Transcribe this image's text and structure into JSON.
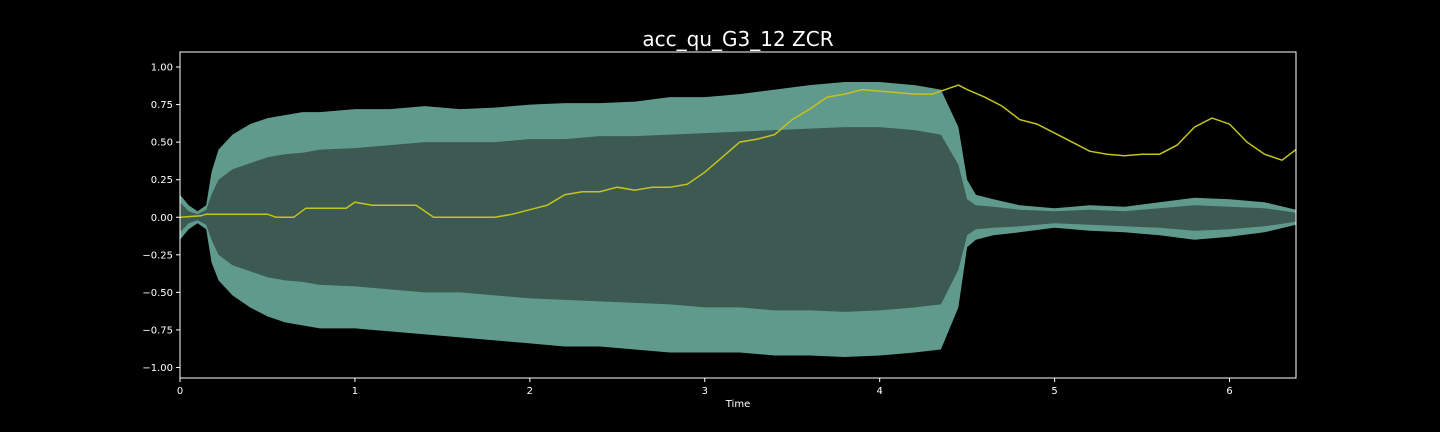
{
  "chart_data": {
    "type": "line",
    "title": "acc_qu_G3_12 ZCR",
    "xlabel": "Time",
    "ylabel": "",
    "xlim": [
      0,
      6.38
    ],
    "ylim": [
      -1.07,
      1.1
    ],
    "xticks": [
      0,
      1,
      2,
      3,
      4,
      5,
      6
    ],
    "xtick_labels": [
      "0",
      "1",
      "2",
      "3",
      "4",
      "5",
      "6"
    ],
    "yticks": [
      1.0,
      0.75,
      0.5,
      0.25,
      0.0,
      -0.25,
      -0.5,
      -0.75,
      -1.0
    ],
    "ytick_labels": [
      "1.00",
      "0.75",
      "0.50",
      "0.25",
      "0.00",
      "−0.25",
      "−0.50",
      "−0.75",
      "−1.00"
    ],
    "grid": false,
    "colors": {
      "background": "#000000",
      "axes_edge": "#ffffff",
      "waveform": "#5f9a8c",
      "waveform_inner": "#3d5a52",
      "zcr_line": "#c4c41e"
    },
    "series": [
      {
        "kind": "waveform-envelope",
        "x": [
          0,
          0.05,
          0.1,
          0.15,
          0.18,
          0.22,
          0.3,
          0.4,
          0.5,
          0.6,
          0.7,
          0.8,
          1.0,
          1.2,
          1.4,
          1.6,
          1.8,
          2.0,
          2.2,
          2.4,
          2.6,
          2.8,
          3.0,
          3.2,
          3.4,
          3.6,
          3.8,
          4.0,
          4.2,
          4.35,
          4.45,
          4.5,
          4.55,
          4.65,
          4.8,
          5.0,
          5.2,
          5.4,
          5.6,
          5.8,
          6.0,
          6.2,
          6.38
        ],
        "upper": [
          0.15,
          0.08,
          0.04,
          0.08,
          0.3,
          0.45,
          0.55,
          0.62,
          0.66,
          0.68,
          0.7,
          0.7,
          0.72,
          0.72,
          0.74,
          0.72,
          0.73,
          0.75,
          0.76,
          0.76,
          0.77,
          0.8,
          0.8,
          0.82,
          0.85,
          0.88,
          0.9,
          0.9,
          0.88,
          0.85,
          0.6,
          0.25,
          0.15,
          0.12,
          0.08,
          0.06,
          0.08,
          0.07,
          0.1,
          0.13,
          0.12,
          0.1,
          0.05
        ],
        "lower": [
          -0.15,
          -0.08,
          -0.04,
          -0.08,
          -0.3,
          -0.42,
          -0.52,
          -0.6,
          -0.66,
          -0.7,
          -0.72,
          -0.74,
          -0.74,
          -0.76,
          -0.78,
          -0.8,
          -0.82,
          -0.84,
          -0.86,
          -0.86,
          -0.88,
          -0.9,
          -0.9,
          -0.9,
          -0.92,
          -0.92,
          -0.93,
          -0.92,
          -0.9,
          -0.88,
          -0.6,
          -0.2,
          -0.15,
          -0.12,
          -0.1,
          -0.07,
          -0.09,
          -0.1,
          -0.12,
          -0.15,
          -0.13,
          -0.1,
          -0.05
        ],
        "inner_upper": [
          0.1,
          0.04,
          0.02,
          0.05,
          0.15,
          0.25,
          0.32,
          0.36,
          0.4,
          0.42,
          0.43,
          0.45,
          0.46,
          0.48,
          0.5,
          0.5,
          0.5,
          0.52,
          0.52,
          0.54,
          0.54,
          0.55,
          0.56,
          0.57,
          0.58,
          0.59,
          0.6,
          0.6,
          0.58,
          0.55,
          0.35,
          0.12,
          0.08,
          0.07,
          0.05,
          0.04,
          0.05,
          0.04,
          0.06,
          0.08,
          0.07,
          0.06,
          0.03
        ],
        "inner_lower": [
          -0.1,
          -0.04,
          -0.02,
          -0.05,
          -0.15,
          -0.25,
          -0.32,
          -0.36,
          -0.4,
          -0.42,
          -0.43,
          -0.45,
          -0.46,
          -0.48,
          -0.5,
          -0.5,
          -0.52,
          -0.54,
          -0.55,
          -0.56,
          -0.57,
          -0.58,
          -0.6,
          -0.6,
          -0.62,
          -0.62,
          -0.63,
          -0.62,
          -0.6,
          -0.58,
          -0.35,
          -0.12,
          -0.08,
          -0.07,
          -0.06,
          -0.04,
          -0.05,
          -0.06,
          -0.07,
          -0.09,
          -0.08,
          -0.06,
          -0.03
        ]
      },
      {
        "kind": "zcr-line",
        "x": [
          0,
          0.12,
          0.15,
          0.2,
          0.5,
          0.55,
          0.65,
          0.72,
          0.85,
          0.95,
          1.0,
          1.1,
          1.2,
          1.35,
          1.45,
          1.5,
          1.7,
          1.8,
          1.9,
          2.0,
          2.1,
          2.2,
          2.3,
          2.4,
          2.5,
          2.6,
          2.7,
          2.8,
          2.9,
          3.0,
          3.1,
          3.2,
          3.3,
          3.4,
          3.5,
          3.6,
          3.7,
          3.8,
          3.9,
          4.0,
          4.1,
          4.2,
          4.3,
          4.4,
          4.45,
          4.5,
          4.6,
          4.7,
          4.8,
          4.9,
          5.0,
          5.1,
          5.2,
          5.3,
          5.4,
          5.5,
          5.6,
          5.7,
          5.8,
          5.9,
          6.0,
          6.1,
          6.2,
          6.3,
          6.38
        ],
        "values": [
          0.0,
          0.01,
          0.02,
          0.02,
          0.02,
          0.0,
          0.0,
          0.06,
          0.06,
          0.06,
          0.1,
          0.08,
          0.08,
          0.08,
          0.0,
          0.0,
          0.0,
          0.0,
          0.02,
          0.05,
          0.08,
          0.15,
          0.17,
          0.17,
          0.2,
          0.18,
          0.2,
          0.2,
          0.22,
          0.3,
          0.4,
          0.5,
          0.52,
          0.55,
          0.65,
          0.72,
          0.8,
          0.82,
          0.85,
          0.84,
          0.83,
          0.82,
          0.82,
          0.86,
          0.88,
          0.85,
          0.8,
          0.74,
          0.65,
          0.62,
          0.56,
          0.5,
          0.44,
          0.42,
          0.41,
          0.42,
          0.42,
          0.48,
          0.6,
          0.66,
          0.62,
          0.5,
          0.42,
          0.38,
          0.45
        ]
      }
    ]
  }
}
